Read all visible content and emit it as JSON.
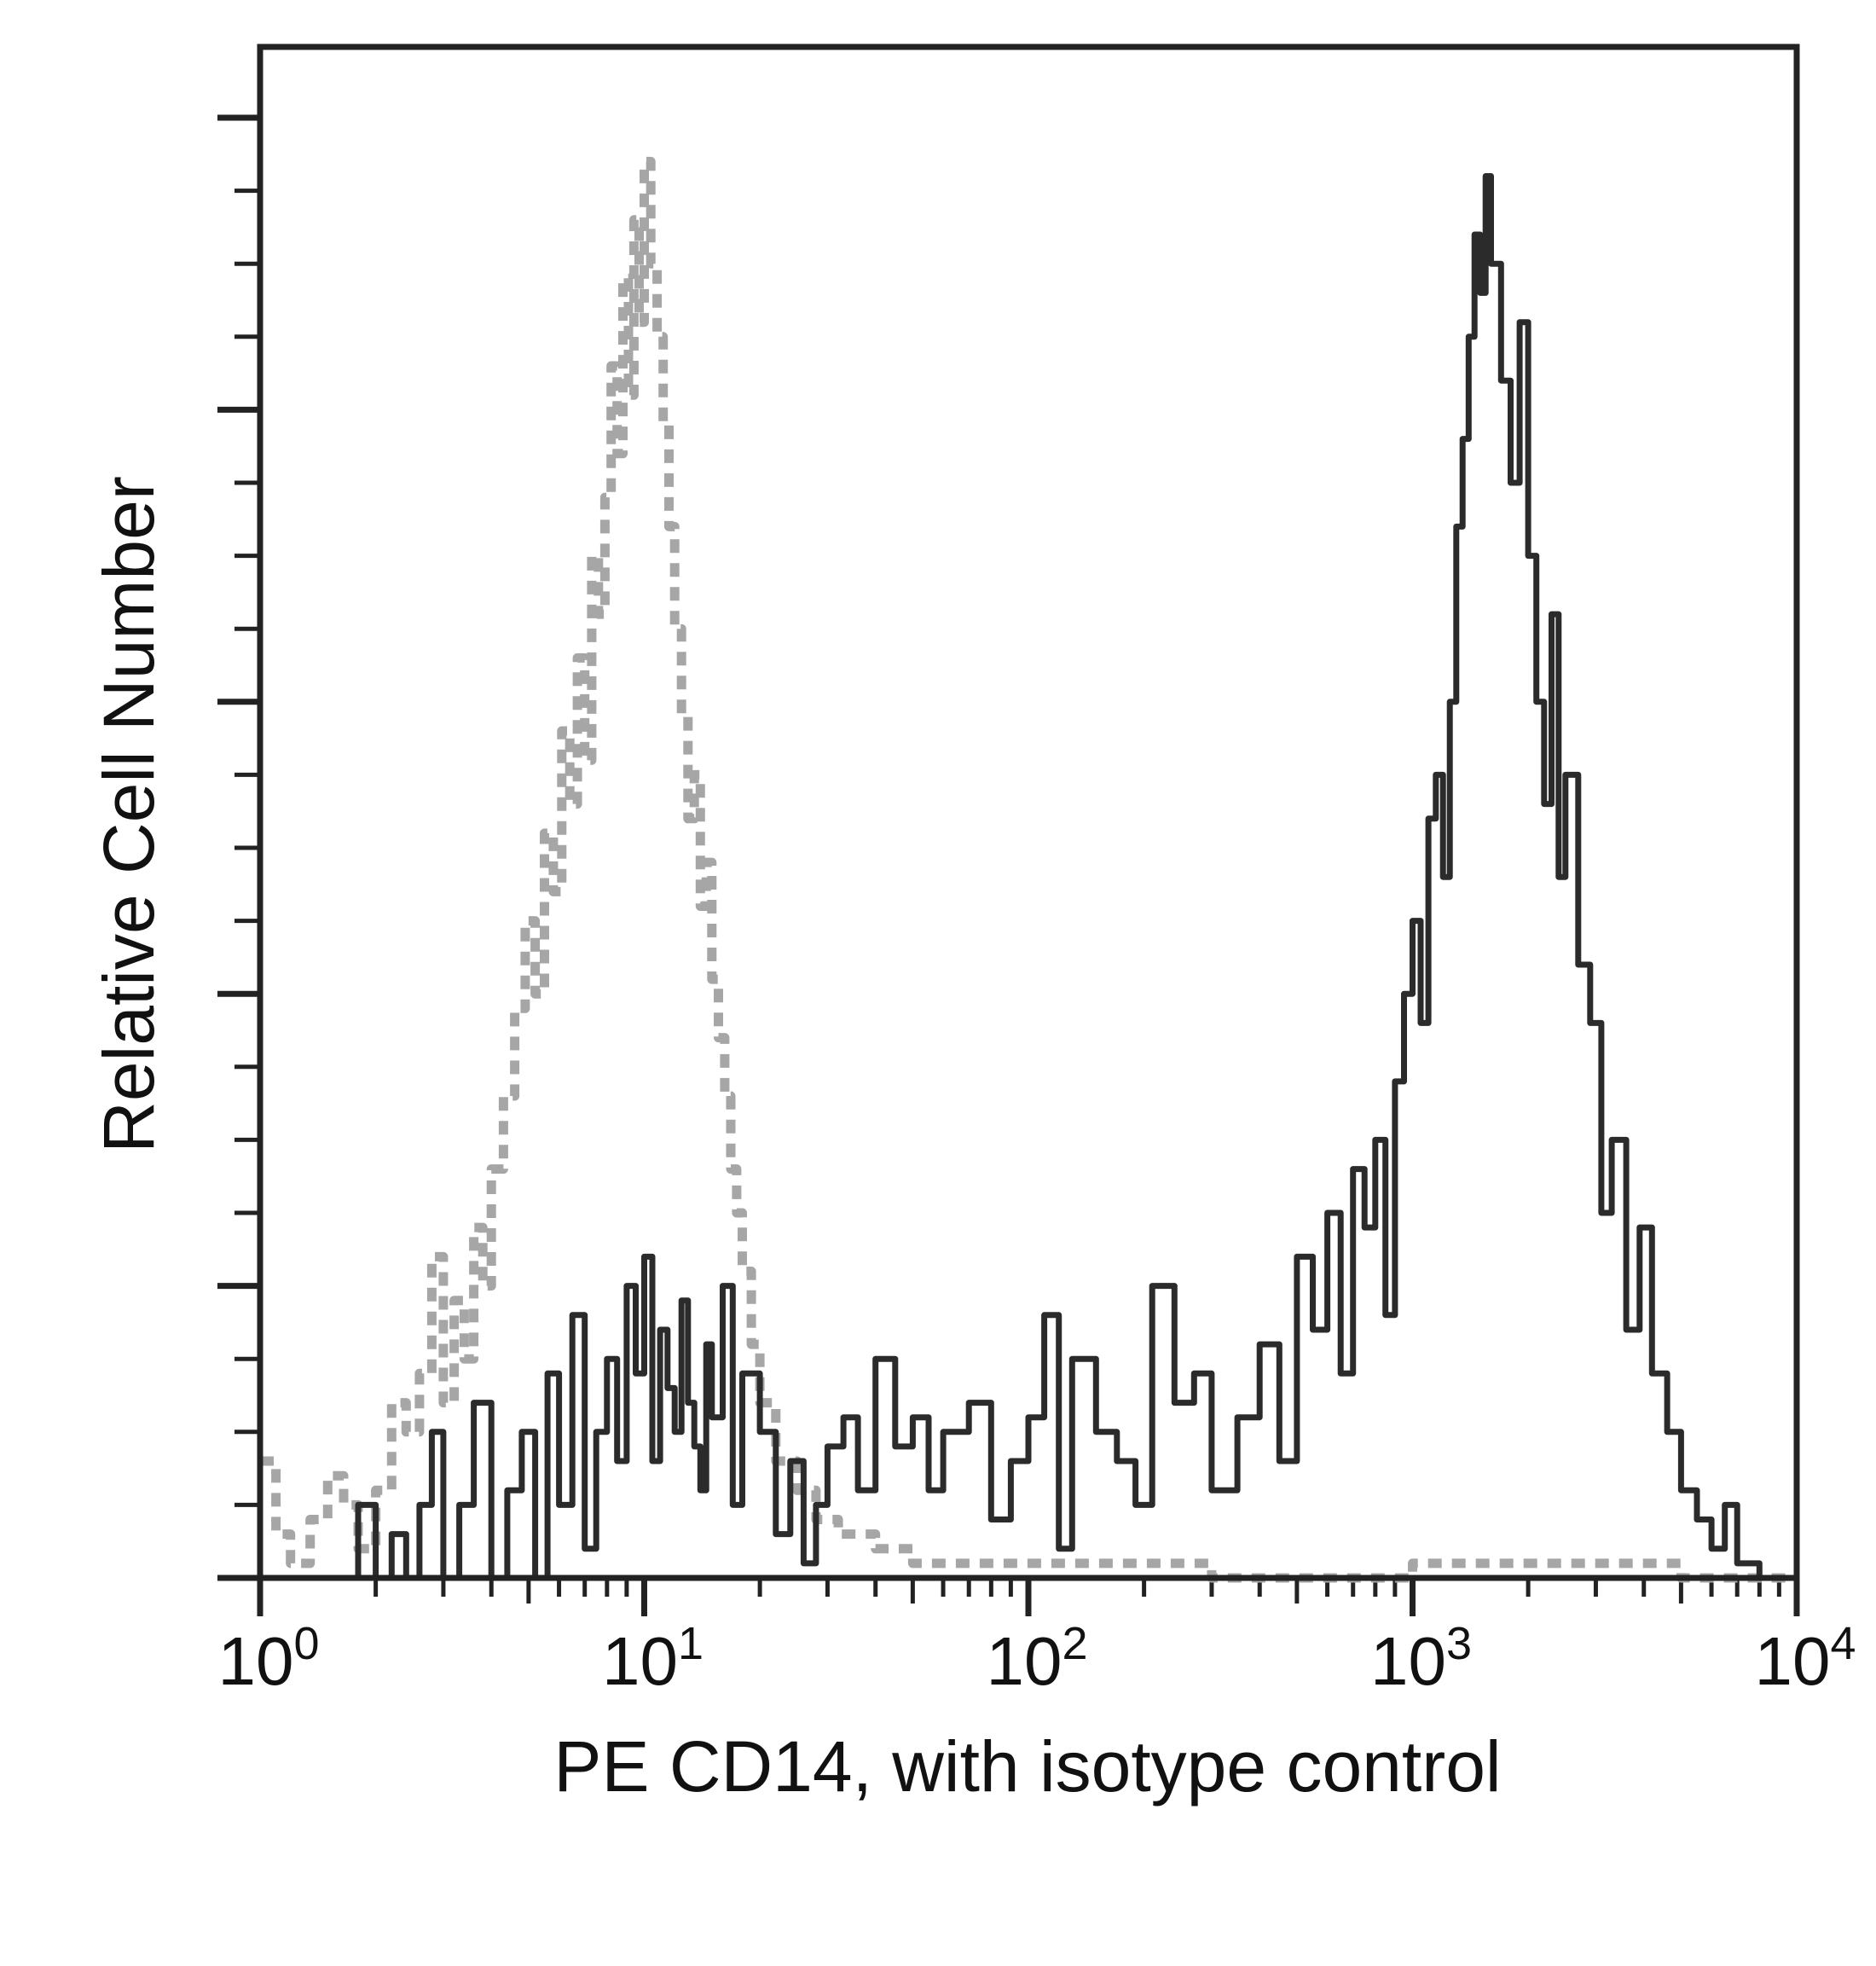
{
  "chart_data": {
    "type": "line",
    "title": "",
    "xlabel": "PE CD14, with isotype control",
    "ylabel": "Relative Cell Number",
    "x_scale": "log",
    "xlim": [
      1,
      10000
    ],
    "ylim": [
      0,
      100
    ],
    "x_ticks": [
      {
        "value": 1,
        "base": "10",
        "exp": "0"
      },
      {
        "value": 10,
        "base": "10",
        "exp": "1"
      },
      {
        "value": 100,
        "base": "10",
        "exp": "2"
      },
      {
        "value": 1000,
        "base": "10",
        "exp": "3"
      },
      {
        "value": 10000,
        "base": "10",
        "exp": "4"
      }
    ],
    "y_major_ticks": [
      0,
      20,
      40,
      60,
      80,
      100
    ],
    "grid": false,
    "legend": "none",
    "series": [
      {
        "role": "isotype control",
        "style": "dotted",
        "color": "#a6a6a6",
        "x": [
          1.0,
          1.1,
          1.2,
          1.35,
          1.5,
          1.65,
          1.8,
          2.0,
          2.2,
          2.4,
          2.6,
          2.8,
          3.0,
          3.2,
          3.4,
          3.6,
          3.8,
          4.0,
          4.3,
          4.6,
          4.9,
          5.2,
          5.5,
          5.8,
          6.1,
          6.4,
          6.7,
          7.0,
          7.3,
          7.6,
          7.9,
          8.2,
          8.5,
          8.8,
          9.1,
          9.4,
          9.7,
          10.0,
          10.4,
          10.8,
          11.2,
          11.6,
          12.0,
          12.5,
          13.0,
          13.5,
          14.0,
          14.5,
          15.0,
          15.6,
          16.2,
          16.8,
          17.4,
          18.0,
          19.0,
          20.0,
          22.0,
          25.0,
          28.0,
          32.0,
          40.0,
          50.0,
          100.0,
          300.0,
          600.0,
          1000.0,
          2000.0,
          5000.0,
          10000.0
        ],
        "y": [
          8,
          3,
          1,
          4,
          7,
          5,
          2,
          6,
          12,
          10,
          14,
          22,
          12,
          19,
          15,
          24,
          20,
          28,
          33,
          39,
          45,
          40,
          51,
          47,
          58,
          53,
          63,
          56,
          70,
          66,
          74,
          83,
          77,
          89,
          81,
          93,
          86,
          97,
          90,
          85,
          79,
          72,
          65,
          59,
          52,
          55,
          46,
          49,
          41,
          37,
          33,
          28,
          25,
          21,
          16,
          12,
          8,
          6,
          4,
          3,
          2,
          1,
          1,
          0,
          0,
          1,
          1,
          0,
          0
        ]
      },
      {
        "role": "PE CD14",
        "style": "solid",
        "color": "#2b2b2b",
        "x": [
          1.0,
          1.5,
          1.8,
          2.0,
          2.2,
          2.4,
          2.6,
          2.8,
          3.0,
          3.3,
          3.6,
          4.0,
          4.4,
          4.8,
          5.2,
          5.6,
          6.0,
          6.5,
          7.0,
          7.5,
          8.0,
          8.5,
          9.0,
          9.5,
          10.0,
          10.5,
          11.0,
          11.5,
          12.0,
          12.5,
          13.0,
          13.5,
          14.0,
          14.5,
          15.0,
          16.0,
          17.0,
          18.0,
          20.0,
          22.0,
          24.0,
          26.0,
          28.0,
          30.0,
          33.0,
          36.0,
          40.0,
          45.0,
          50.0,
          55.0,
          60.0,
          70.0,
          80.0,
          90.0,
          100.0,
          110.0,
          120.0,
          130.0,
          150.0,
          170.0,
          190.0,
          210.0,
          240.0,
          270.0,
          300.0,
          350.0,
          400.0,
          450.0,
          500.0,
          550.0,
          600.0,
          650.0,
          700.0,
          750.0,
          800.0,
          850.0,
          900.0,
          950.0,
          1000.0,
          1050.0,
          1100.0,
          1150.0,
          1200.0,
          1250.0,
          1300.0,
          1350.0,
          1400.0,
          1450.0,
          1500.0,
          1550.0,
          1600.0,
          1700.0,
          1800.0,
          1900.0,
          2000.0,
          2100.0,
          2200.0,
          2300.0,
          2400.0,
          2500.0,
          2700.0,
          2900.0,
          3100.0,
          3300.0,
          3600.0,
          3900.0,
          4200.0,
          4600.0,
          5000.0,
          5500.0,
          6000.0,
          6500.0,
          7000.0,
          8000.0,
          9000.0,
          10000.0
        ],
        "y": [
          0,
          0,
          5,
          0,
          3,
          0,
          5,
          10,
          0,
          5,
          12,
          0,
          6,
          10,
          0,
          14,
          5,
          18,
          2,
          10,
          15,
          8,
          20,
          14,
          22,
          8,
          17,
          13,
          10,
          19,
          12,
          9,
          6,
          16,
          11,
          20,
          5,
          14,
          10,
          3,
          8,
          1,
          5,
          9,
          11,
          6,
          15,
          9,
          11,
          6,
          10,
          12,
          4,
          8,
          11,
          18,
          2,
          15,
          10,
          8,
          5,
          20,
          12,
          14,
          6,
          11,
          16,
          8,
          22,
          17,
          25,
          14,
          28,
          24,
          30,
          18,
          34,
          40,
          45,
          38,
          52,
          55,
          48,
          60,
          72,
          78,
          85,
          92,
          88,
          96,
          90,
          82,
          75,
          86,
          70,
          60,
          53,
          66,
          48,
          55,
          42,
          38,
          25,
          30,
          17,
          24,
          14,
          10,
          6,
          4,
          2,
          5,
          1,
          0,
          0,
          0
        ]
      }
    ]
  }
}
